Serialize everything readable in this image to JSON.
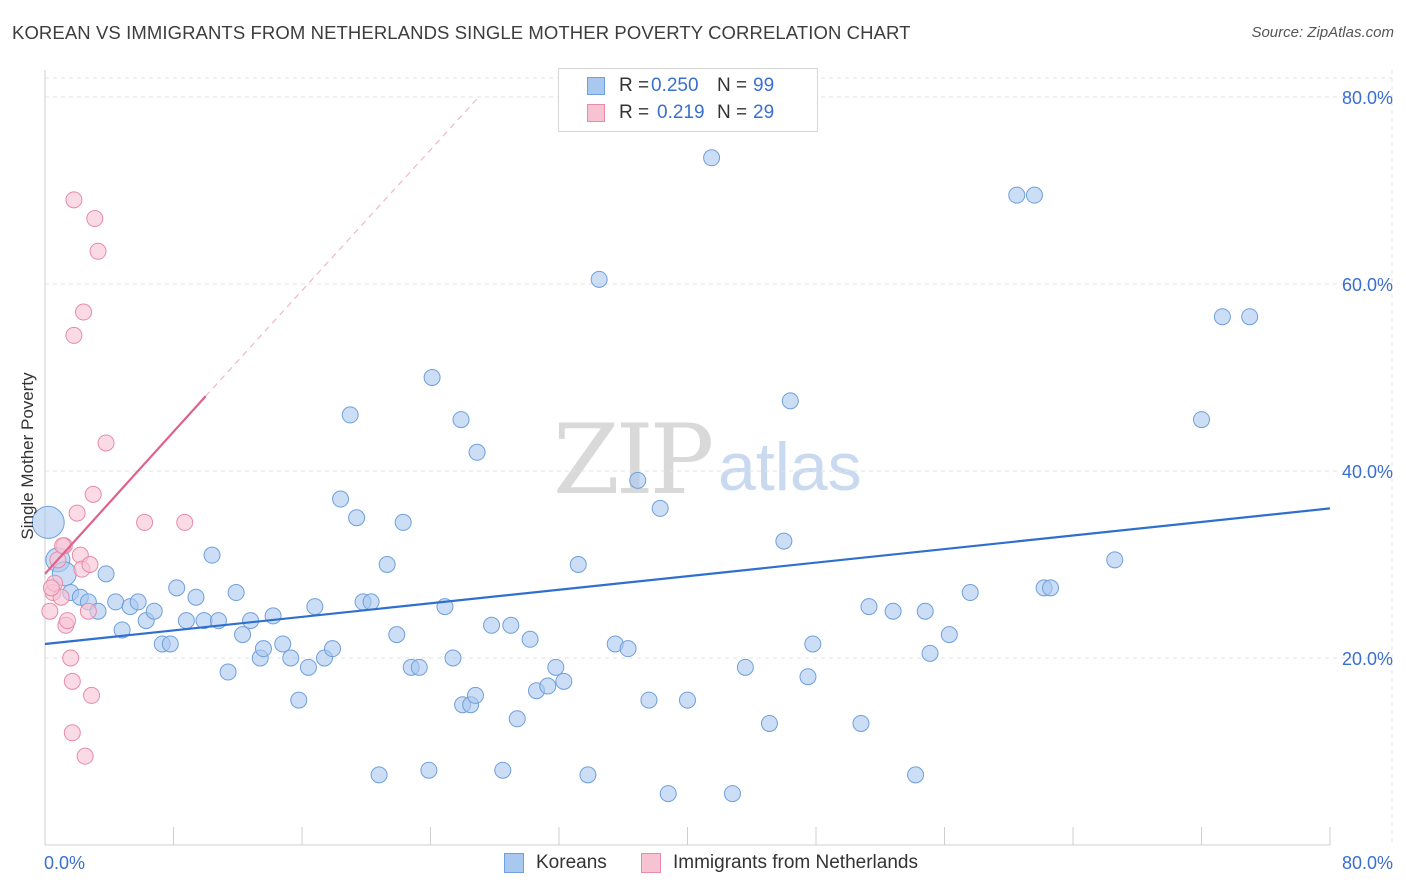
{
  "title": "KOREAN VS IMMIGRANTS FROM NETHERLANDS SINGLE MOTHER POVERTY CORRELATION CHART",
  "source": "Source: ZipAtlas.com",
  "watermark": {
    "zip": "ZIP",
    "atlas": "atlas"
  },
  "legend": {
    "rows": [
      {
        "r_label": "R =",
        "r_value": "0.250",
        "n_label": "N =",
        "n_value": "99",
        "color": "#a9c8f0",
        "border": "#6f9fdc"
      },
      {
        "r_label": "R =",
        "r_value": "0.219",
        "n_label": "N =",
        "n_value": "29",
        "color": "#f7c3d3",
        "border": "#e88aa8"
      }
    ]
  },
  "bottom_legend": [
    {
      "label": "Koreans",
      "color": "#a9c8f0",
      "border": "#6f9fdc"
    },
    {
      "label": "Immigrants from Netherlands",
      "color": "#f7c3d3",
      "border": "#e88aa8"
    }
  ],
  "chart_data": {
    "type": "scatter",
    "title": "KOREAN VS IMMIGRANTS FROM NETHERLANDS SINGLE MOTHER POVERTY CORRELATION CHART",
    "xlabel": "",
    "ylabel": "Single Mother Poverty",
    "xlim": [
      0,
      80
    ],
    "ylim": [
      0,
      82
    ],
    "x_tick_labels": [
      {
        "value": 0,
        "label": "0.0%"
      },
      {
        "value": 80,
        "label": "80.0%"
      }
    ],
    "y_tick_labels": [
      {
        "value": 20,
        "label": "20.0%"
      },
      {
        "value": 40,
        "label": "40.0%"
      },
      {
        "value": 60,
        "label": "60.0%"
      },
      {
        "value": 80,
        "label": "80.0%"
      }
    ],
    "grid": true,
    "legend_position": "top-center",
    "series": [
      {
        "name": "Koreans",
        "color": "#6f9fdc",
        "fill": "#a9c8f0",
        "trend": {
          "x": [
            0,
            80
          ],
          "y": [
            21.5,
            36.0
          ],
          "color": "#2f6fce"
        },
        "points": [
          [
            0.2,
            34.5
          ],
          [
            0.8,
            30.5
          ],
          [
            1.2,
            29.0
          ],
          [
            1.6,
            27.0
          ],
          [
            2.2,
            26.5
          ],
          [
            2.7,
            26.0
          ],
          [
            3.3,
            25.0
          ],
          [
            3.8,
            29.0
          ],
          [
            4.4,
            26.0
          ],
          [
            4.8,
            23.0
          ],
          [
            5.3,
            25.5
          ],
          [
            5.8,
            26.0
          ],
          [
            6.3,
            24.0
          ],
          [
            6.8,
            25.0
          ],
          [
            7.3,
            21.5
          ],
          [
            7.8,
            21.5
          ],
          [
            8.2,
            27.5
          ],
          [
            8.8,
            24.0
          ],
          [
            9.4,
            26.5
          ],
          [
            9.9,
            24.0
          ],
          [
            10.4,
            31.0
          ],
          [
            10.8,
            24.0
          ],
          [
            11.4,
            18.5
          ],
          [
            11.9,
            27.0
          ],
          [
            12.3,
            22.5
          ],
          [
            12.8,
            24.0
          ],
          [
            13.4,
            20.0
          ],
          [
            13.6,
            21.0
          ],
          [
            14.2,
            24.5
          ],
          [
            14.8,
            21.5
          ],
          [
            15.3,
            20.0
          ],
          [
            15.8,
            15.5
          ],
          [
            16.4,
            19.0
          ],
          [
            16.8,
            25.5
          ],
          [
            17.4,
            20.0
          ],
          [
            17.9,
            21.0
          ],
          [
            18.4,
            37.0
          ],
          [
            19.0,
            46.0
          ],
          [
            19.4,
            35.0
          ],
          [
            19.8,
            26.0
          ],
          [
            20.3,
            26.0
          ],
          [
            20.8,
            7.5
          ],
          [
            21.3,
            30.0
          ],
          [
            21.9,
            22.5
          ],
          [
            22.3,
            34.5
          ],
          [
            22.8,
            19.0
          ],
          [
            23.3,
            19.0
          ],
          [
            23.9,
            8.0
          ],
          [
            24.1,
            50.0
          ],
          [
            24.9,
            25.5
          ],
          [
            25.4,
            20.0
          ],
          [
            25.9,
            45.5
          ],
          [
            26.0,
            15.0
          ],
          [
            26.5,
            15.0
          ],
          [
            26.8,
            16.0
          ],
          [
            26.9,
            42.0
          ],
          [
            27.8,
            23.5
          ],
          [
            28.5,
            8.0
          ],
          [
            29.0,
            23.5
          ],
          [
            29.4,
            13.5
          ],
          [
            30.2,
            22.0
          ],
          [
            30.6,
            16.5
          ],
          [
            31.3,
            17.0
          ],
          [
            31.8,
            19.0
          ],
          [
            32.3,
            17.5
          ],
          [
            33.2,
            30.0
          ],
          [
            33.8,
            7.5
          ],
          [
            34.5,
            60.5
          ],
          [
            35.5,
            21.5
          ],
          [
            36.3,
            21.0
          ],
          [
            36.9,
            39.0
          ],
          [
            37.6,
            15.5
          ],
          [
            38.3,
            36.0
          ],
          [
            38.8,
            5.5
          ],
          [
            40.0,
            15.5
          ],
          [
            41.5,
            73.5
          ],
          [
            42.8,
            5.5
          ],
          [
            43.6,
            19.0
          ],
          [
            45.1,
            13.0
          ],
          [
            46.0,
            32.5
          ],
          [
            46.4,
            47.5
          ],
          [
            47.5,
            18.0
          ],
          [
            47.8,
            21.5
          ],
          [
            50.8,
            13.0
          ],
          [
            51.3,
            25.5
          ],
          [
            52.8,
            25.0
          ],
          [
            54.2,
            7.5
          ],
          [
            54.8,
            25.0
          ],
          [
            55.1,
            20.5
          ],
          [
            56.3,
            22.5
          ],
          [
            57.6,
            27.0
          ],
          [
            60.5,
            69.5
          ],
          [
            61.6,
            69.5
          ],
          [
            62.2,
            27.5
          ],
          [
            62.6,
            27.5
          ],
          [
            66.6,
            30.5
          ],
          [
            72.0,
            45.5
          ],
          [
            73.3,
            56.5
          ],
          [
            75.0,
            56.5
          ]
        ]
      },
      {
        "name": "Immigrants from Netherlands",
        "color": "#e88aa8",
        "fill": "#f7c3d3",
        "trend": {
          "x": [
            0,
            10
          ],
          "y": [
            29.0,
            48.0
          ],
          "color": "#e0628c",
          "dash_to": [
            27,
            80
          ]
        },
        "points": [
          [
            0.3,
            25.0
          ],
          [
            0.5,
            27.0
          ],
          [
            0.6,
            28.0
          ],
          [
            0.8,
            30.5
          ],
          [
            1.0,
            26.5
          ],
          [
            1.2,
            32.0
          ],
          [
            1.3,
            23.5
          ],
          [
            1.4,
            24.0
          ],
          [
            1.6,
            20.0
          ],
          [
            1.7,
            17.5
          ],
          [
            1.7,
            12.0
          ],
          [
            1.8,
            54.5
          ],
          [
            1.8,
            69.0
          ],
          [
            2.0,
            35.5
          ],
          [
            2.2,
            31.0
          ],
          [
            2.3,
            29.5
          ],
          [
            2.4,
            57.0
          ],
          [
            2.5,
            9.5
          ],
          [
            2.7,
            25.0
          ],
          [
            2.8,
            30.0
          ],
          [
            2.9,
            16.0
          ],
          [
            3.0,
            37.5
          ],
          [
            3.1,
            67.0
          ],
          [
            3.3,
            63.5
          ],
          [
            3.8,
            43.0
          ],
          [
            6.2,
            34.5
          ],
          [
            8.7,
            34.5
          ],
          [
            1.1,
            32.0
          ],
          [
            0.4,
            27.5
          ]
        ]
      }
    ]
  }
}
